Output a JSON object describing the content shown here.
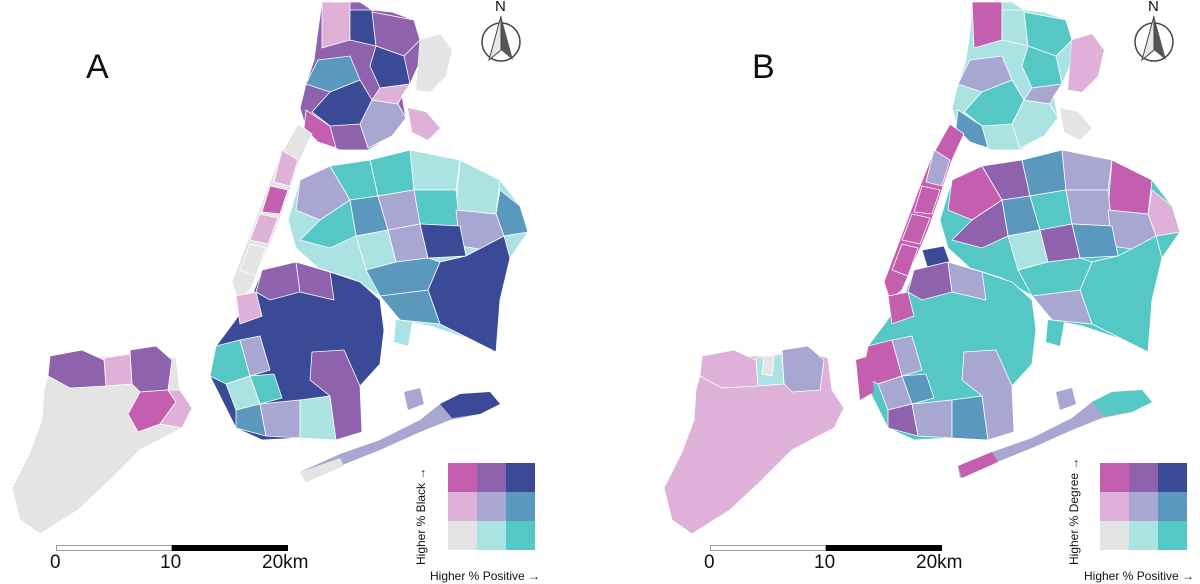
{
  "panels": [
    {
      "letter": "A",
      "north": "N",
      "scale": {
        "start": "0",
        "mid": "10",
        "end": "20km"
      },
      "legend": {
        "x_label": "Higher % Positive →",
        "y_label": "Higher % Black →",
        "colors": [
          "#c35fae",
          "#8e62ac",
          "#3a4a97",
          "#dfb1d8",
          "#a8a7d2",
          "#5a98bd",
          "#e4e4e4",
          "#abe3e3",
          "#55c7c4"
        ]
      }
    },
    {
      "letter": "B",
      "north": "N",
      "scale": {
        "start": "0",
        "mid": "10",
        "end": "20km"
      },
      "legend": {
        "x_label": "Higher % Positive →",
        "y_label": "Higher % Degree →",
        "colors": [
          "#c35fae",
          "#8e62ac",
          "#3a4a97",
          "#dfb1d8",
          "#a8a7d2",
          "#5a98bd",
          "#e4e4e4",
          "#abe3e3",
          "#55c7c4"
        ]
      }
    }
  ]
}
